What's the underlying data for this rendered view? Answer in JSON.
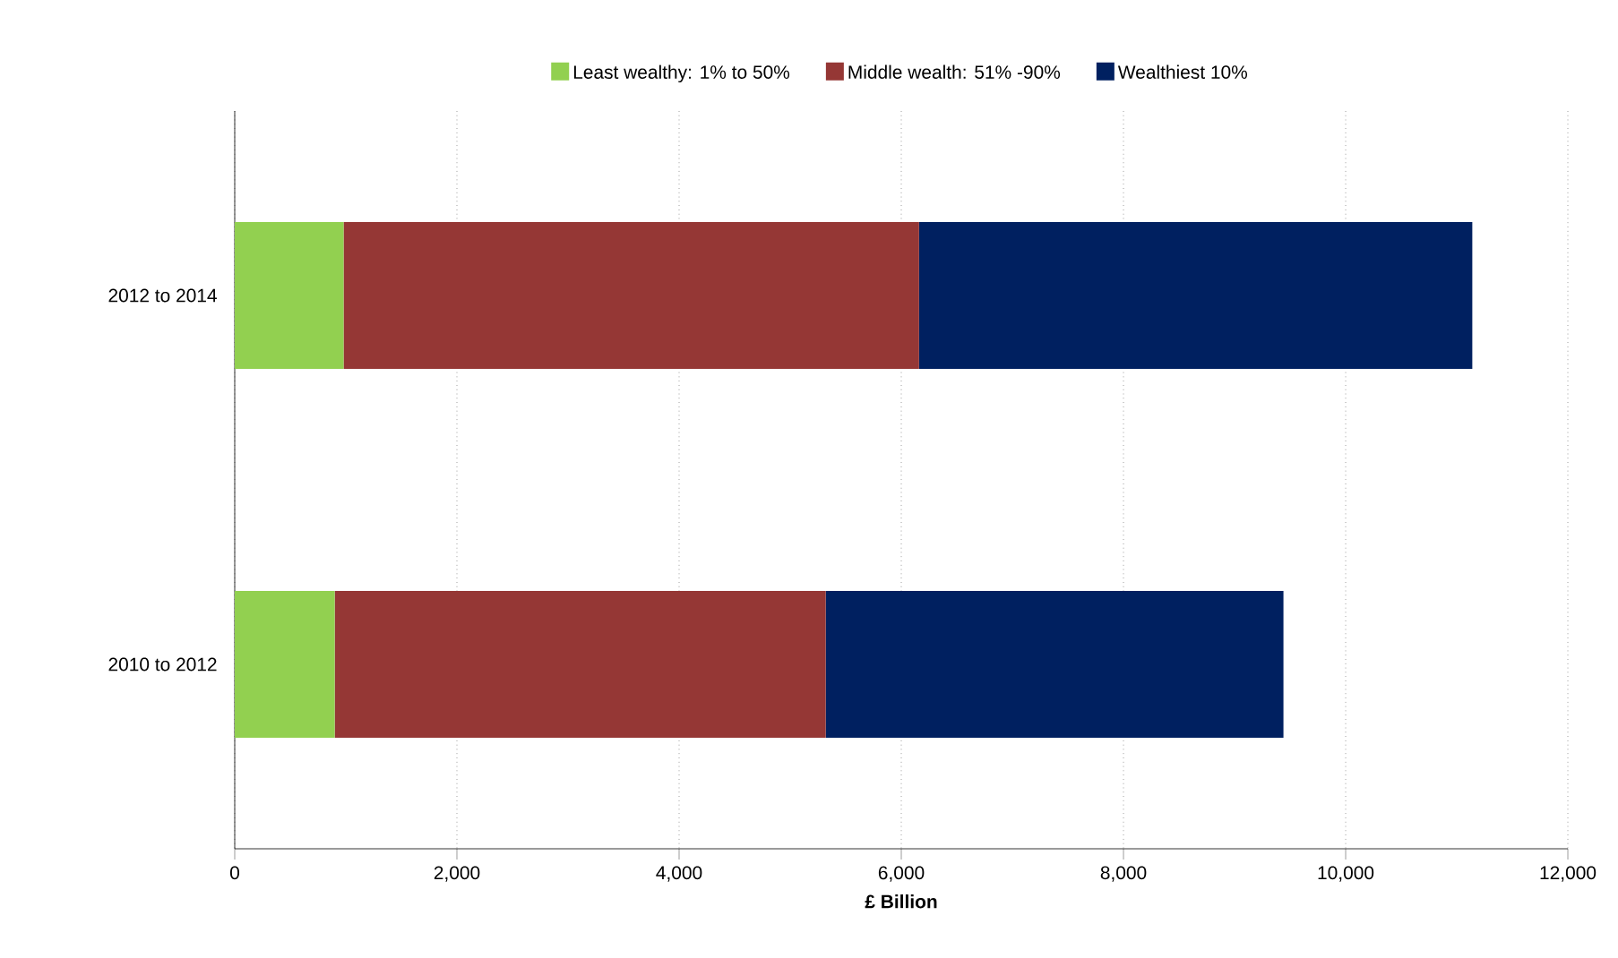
{
  "chart_data": {
    "type": "bar",
    "orientation": "horizontal",
    "stacked": true,
    "categories": [
      "2012 to 2014",
      "2010 to 2012"
    ],
    "series": [
      {
        "name": "Least wealthy: 1% to 50%",
        "color": "#92d050",
        "values": [
          980,
          900
        ]
      },
      {
        "name": "Middle wealth: 51% -90%",
        "color": "#953735",
        "values": [
          5180,
          4420
        ]
      },
      {
        "name": "Wealthiest 10%",
        "color": "#002060",
        "values": [
          4980,
          4120
        ]
      }
    ],
    "xlabel": "£ Billion",
    "xlim": [
      0,
      12000
    ],
    "xticks": [
      0,
      {
        "value": 2000,
        "label": "2,000"
      },
      {
        "value": 4000,
        "label": "4,000"
      },
      {
        "value": 6000,
        "label": "6,000"
      },
      {
        "value": 8000,
        "label": "8,000"
      },
      {
        "value": 10000,
        "label": "10,000"
      },
      {
        "value": 12000,
        "label": "12,000"
      }
    ],
    "grid": "x",
    "legend": "top"
  }
}
